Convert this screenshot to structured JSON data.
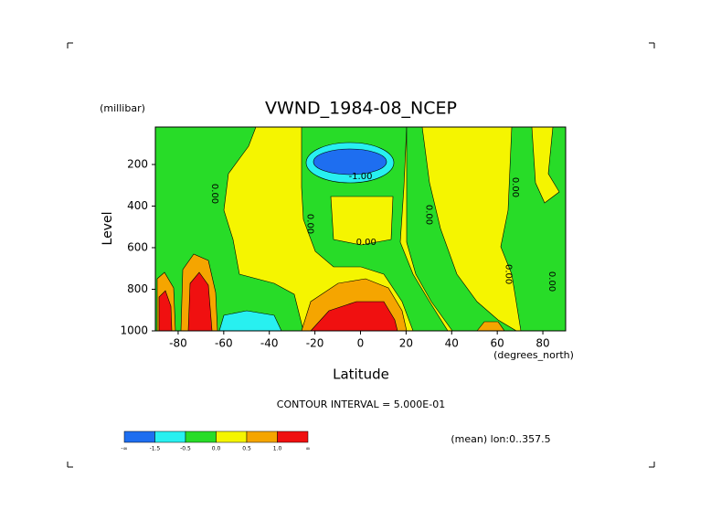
{
  "chart_data": {
    "type": "contour",
    "title": "VWND_1984-08_NCEP",
    "y_label": "Level",
    "y_unit": "(millibar)",
    "x_label": "Latitude",
    "x_unit": "(degrees_north)",
    "xlim": [
      -90,
      90
    ],
    "xticks": [
      -80,
      -60,
      -40,
      -20,
      0,
      20,
      40,
      60,
      80
    ],
    "ylim": [
      1000,
      20
    ],
    "yticks": [
      200,
      400,
      600,
      800,
      1000
    ],
    "contour_labels": [
      {
        "label": "0.00",
        "lat": -64,
        "level": 341
      },
      {
        "label": "0.00",
        "lat": -22,
        "level": 486
      },
      {
        "label": "-1.00",
        "lat": 0,
        "level": 257
      },
      {
        "label": "0.00",
        "lat": 2.5,
        "level": 574
      },
      {
        "label": "0.00",
        "lat": 30,
        "level": 442
      },
      {
        "label": "0.00",
        "lat": 68,
        "level": 310
      },
      {
        "label": "0.00",
        "lat": 65,
        "level": 728
      },
      {
        "label": "0.00",
        "lat": 84,
        "level": 763
      }
    ],
    "contour_interval_text": "CONTOUR INTERVAL = 5.000E-01",
    "note": "(mean) lon:0..357.5",
    "colorbar": {
      "colors": [
        "#1e6ef0",
        "#28f0f0",
        "#28dc28",
        "#f5f500",
        "#f5a500",
        "#f01010"
      ],
      "labels": [
        "-∞",
        "-1.5",
        "-0.5",
        "0.0",
        "0.5",
        "1.0",
        "∞"
      ]
    }
  }
}
